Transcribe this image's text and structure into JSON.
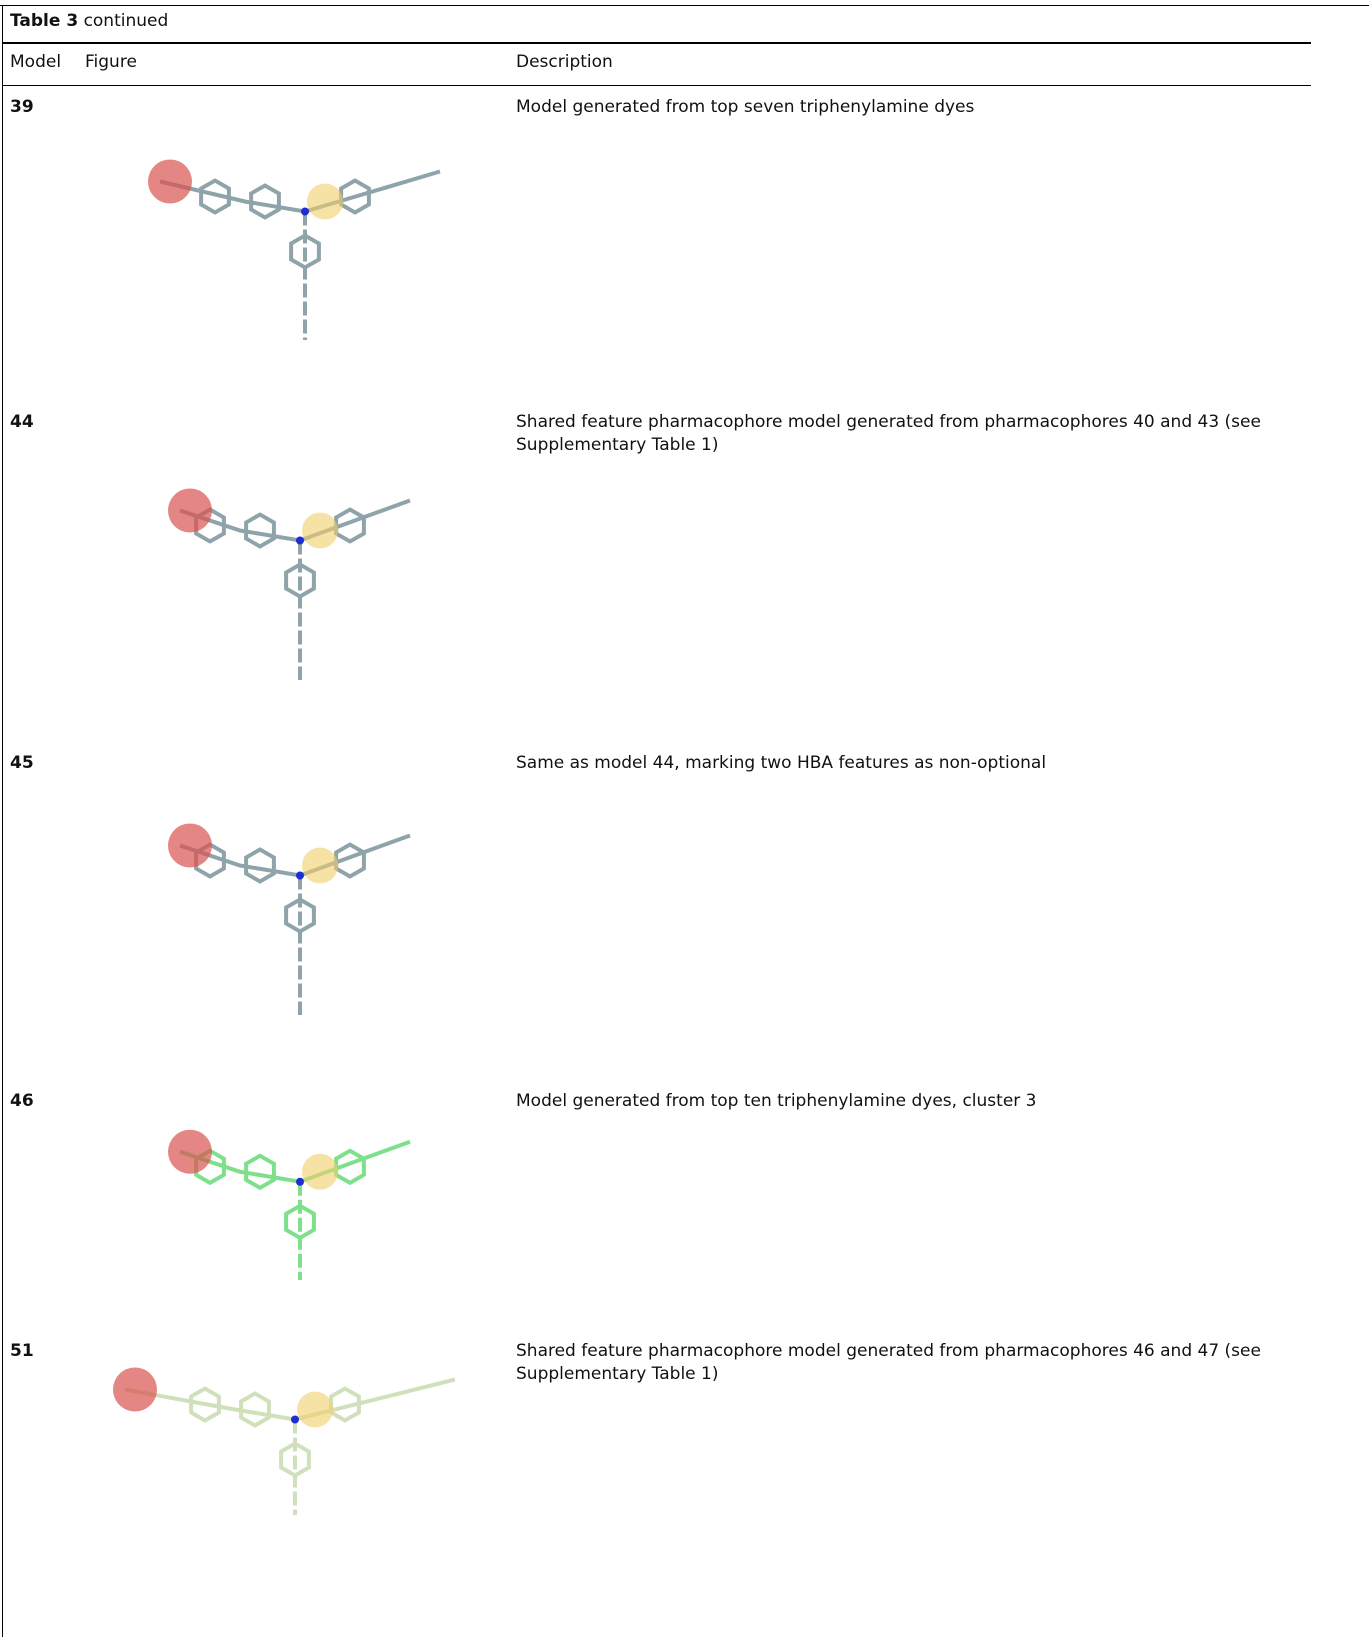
{
  "header": {
    "label": "Table 3",
    "suffix": "continued"
  },
  "table": {
    "columns": [
      "Model",
      "Figure",
      "Description"
    ],
    "rows": [
      {
        "model": "39",
        "description": "Model generated from top seven triphenylamine dyes"
      },
      {
        "model": "44",
        "description": "Shared feature pharmacophore model generated from pharmacophores 40 and 43 (see Supplementary Table 1)"
      },
      {
        "model": "45",
        "description": "Same as model 44, marking two HBA features as non-optional"
      },
      {
        "model": "46",
        "description": "Model generated from top ten triphenylamine dyes, cluster 3"
      },
      {
        "model": "51",
        "description": "Shared feature pharmacophore model generated from pharmacophores 46 and 47 (see Supplementary Table 1)"
      }
    ]
  }
}
